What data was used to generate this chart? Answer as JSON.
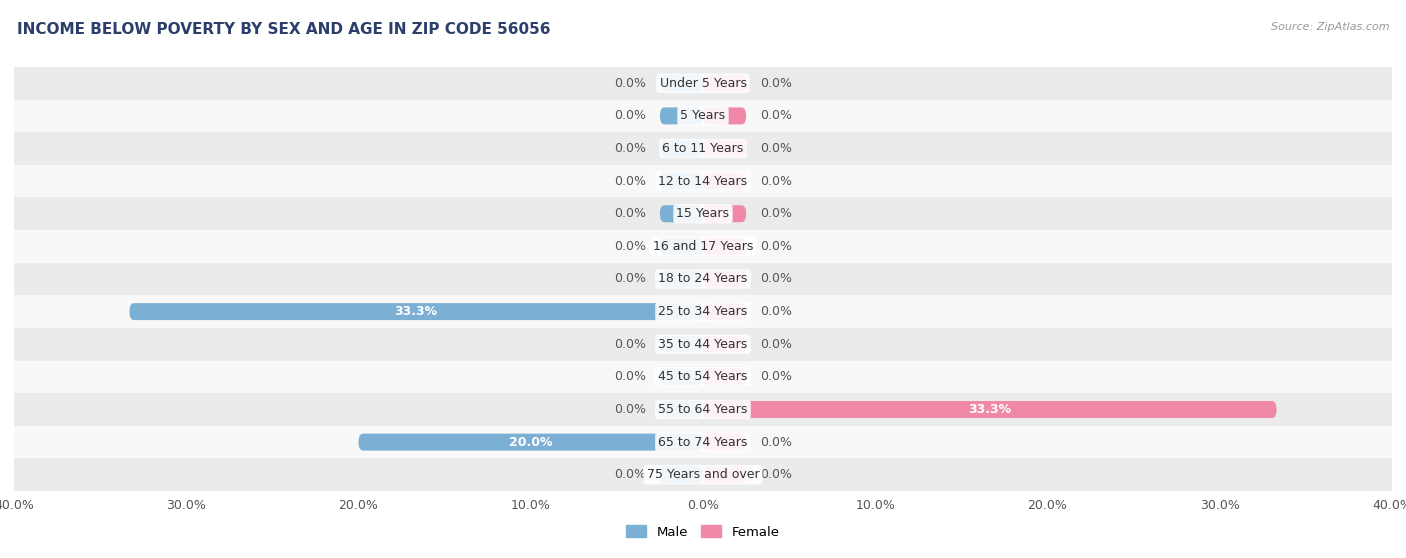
{
  "title": "INCOME BELOW POVERTY BY SEX AND AGE IN ZIP CODE 56056",
  "source_text": "Source: ZipAtlas.com",
  "categories": [
    "Under 5 Years",
    "5 Years",
    "6 to 11 Years",
    "12 to 14 Years",
    "15 Years",
    "16 and 17 Years",
    "18 to 24 Years",
    "25 to 34 Years",
    "35 to 44 Years",
    "45 to 54 Years",
    "55 to 64 Years",
    "65 to 74 Years",
    "75 Years and over"
  ],
  "male_values": [
    0.0,
    0.0,
    0.0,
    0.0,
    0.0,
    0.0,
    0.0,
    33.3,
    0.0,
    0.0,
    0.0,
    20.0,
    0.0
  ],
  "female_values": [
    0.0,
    0.0,
    0.0,
    0.0,
    0.0,
    0.0,
    0.0,
    0.0,
    0.0,
    0.0,
    33.3,
    0.0,
    0.0
  ],
  "male_color": "#7bafd4",
  "female_color": "#f088a8",
  "row_bg_even": "#ebebeb",
  "row_bg_odd": "#f8f8f8",
  "xlim": 40.0,
  "bar_height": 0.52,
  "stub_size": 2.5,
  "label_fontsize": 9,
  "title_fontsize": 11,
  "axis_label_fontsize": 9,
  "title_color": "#2c3e6b",
  "source_color": "#999999",
  "cat_label_color": "#333333",
  "value_label_color": "#555555",
  "value_label_inside_color": "#ffffff",
  "legend_male": "Male",
  "legend_female": "Female"
}
